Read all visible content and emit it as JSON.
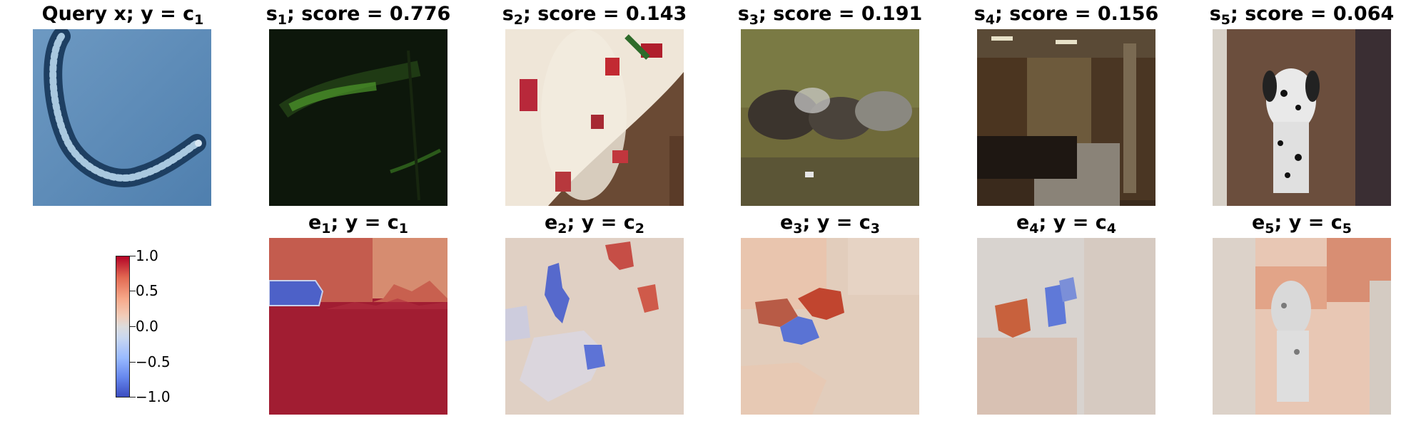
{
  "query": {
    "title_main": "Query x; y = c",
    "title_sub": "1"
  },
  "samples": [
    {
      "sym": "s",
      "idx": "1",
      "score_label": "; score = 0.776"
    },
    {
      "sym": "s",
      "idx": "2",
      "score_label": "; score = 0.143"
    },
    {
      "sym": "s",
      "idx": "3",
      "score_label": "; score = 0.191"
    },
    {
      "sym": "s",
      "idx": "4",
      "score_label": "; score = 0.156"
    },
    {
      "sym": "s",
      "idx": "5",
      "score_label": "; score = 0.064"
    }
  ],
  "explanations": [
    {
      "sym": "e",
      "idx": "1",
      "mid": "; y = c",
      "cidx": "1"
    },
    {
      "sym": "e",
      "idx": "2",
      "mid": "; y = c",
      "cidx": "2"
    },
    {
      "sym": "e",
      "idx": "3",
      "mid": "; y = c",
      "cidx": "3"
    },
    {
      "sym": "e",
      "idx": "4",
      "mid": "; y = c",
      "cidx": "4"
    },
    {
      "sym": "e",
      "idx": "5",
      "mid": "; y = c",
      "cidx": "5"
    }
  ],
  "colorbar": {
    "colormap": "coolwarm",
    "ticks": [
      "1.0",
      "0.5",
      "0.0",
      "−0.5",
      "−1.0"
    ],
    "min": -1.0,
    "max": 1.0
  }
}
